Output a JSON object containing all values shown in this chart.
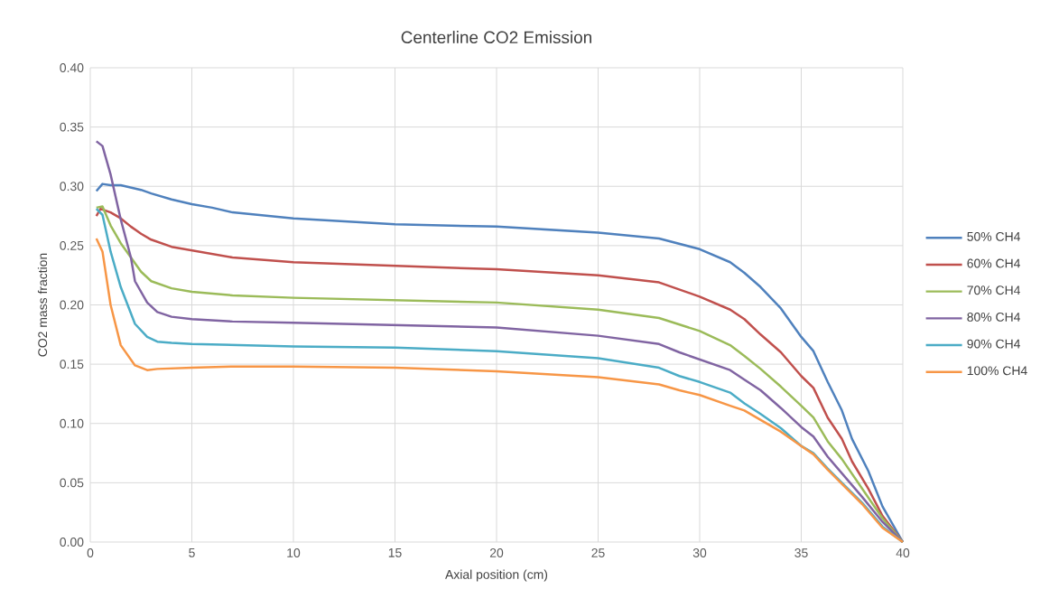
{
  "chart_data": {
    "type": "line",
    "title": "Centerline CO2 Emission",
    "xlabel": "Axial position (cm)",
    "ylabel": "CO2 mass fraction",
    "xlim": [
      0,
      40
    ],
    "xticks": [
      0,
      5,
      10,
      15,
      20,
      25,
      30,
      35,
      40
    ],
    "ylim": [
      0,
      0.4
    ],
    "yticks": [
      {
        "value": 0,
        "label": "0.00"
      },
      {
        "value": 0.05,
        "label": "0.05"
      },
      {
        "value": 0.1,
        "label": "0.10"
      },
      {
        "value": 0.15,
        "label": "0.15"
      },
      {
        "value": 0.2,
        "label": "0.20"
      },
      {
        "value": 0.25,
        "label": "0.25"
      },
      {
        "value": 0.3,
        "label": "0.30"
      },
      {
        "value": 0.35,
        "label": "0.35"
      },
      {
        "value": 0.4,
        "label": "0.40"
      }
    ],
    "grid": true,
    "legend": "right",
    "marker": "none",
    "line_style": "solid",
    "series": [
      {
        "name": "50% CH4",
        "color": "#4f81bd",
        "x": [
          0.3,
          0.6,
          1,
          1.5,
          2,
          2.5,
          3,
          4,
          5,
          6,
          7,
          10,
          15,
          20,
          25,
          28,
          30,
          31.5,
          32.2,
          33,
          34,
          35,
          35.6,
          36.3,
          37,
          37.5,
          38.3,
          39,
          39.5,
          40
        ],
        "values": [
          0.296,
          0.302,
          0.301,
          0.301,
          0.299,
          0.297,
          0.294,
          0.289,
          0.285,
          0.282,
          0.278,
          0.273,
          0.268,
          0.266,
          0.261,
          0.256,
          0.247,
          0.236,
          0.227,
          0.215,
          0.197,
          0.173,
          0.161,
          0.135,
          0.111,
          0.087,
          0.06,
          0.03,
          0.015,
          0
        ]
      },
      {
        "name": "60% CH4",
        "color": "#c0504d",
        "x": [
          0.3,
          0.5,
          1,
          1.5,
          2,
          2.5,
          3,
          4,
          5,
          7,
          10,
          15,
          20,
          25,
          28,
          29,
          30,
          31.5,
          32.2,
          33,
          34,
          35,
          35.6,
          36.3,
          37,
          37.5,
          38.3,
          39,
          40
        ],
        "values": [
          0.275,
          0.281,
          0.278,
          0.273,
          0.266,
          0.26,
          0.255,
          0.249,
          0.246,
          0.24,
          0.236,
          0.233,
          0.23,
          0.225,
          0.219,
          0.213,
          0.207,
          0.196,
          0.188,
          0.175,
          0.16,
          0.14,
          0.13,
          0.105,
          0.087,
          0.068,
          0.045,
          0.022,
          0
        ]
      },
      {
        "name": "70% CH4",
        "color": "#9bbb59",
        "x": [
          0.3,
          0.6,
          1,
          1.5,
          2,
          2.5,
          3,
          4,
          5,
          7,
          10,
          15,
          20,
          25,
          28,
          30,
          31.5,
          32.2,
          33,
          34,
          35,
          35.6,
          36.3,
          37,
          38,
          39,
          40
        ],
        "values": [
          0.282,
          0.283,
          0.267,
          0.252,
          0.24,
          0.228,
          0.22,
          0.214,
          0.211,
          0.208,
          0.206,
          0.204,
          0.202,
          0.196,
          0.189,
          0.178,
          0.166,
          0.157,
          0.146,
          0.131,
          0.115,
          0.105,
          0.085,
          0.07,
          0.045,
          0.02,
          0
        ]
      },
      {
        "name": "80% CH4",
        "color": "#8064a2",
        "x": [
          0.3,
          0.6,
          1,
          1.5,
          2,
          2.2,
          2.8,
          3.3,
          4,
          5,
          7,
          10,
          15,
          20,
          25,
          28,
          29,
          30,
          31.5,
          32.2,
          33,
          34,
          35,
          35.6,
          36.3,
          37,
          38,
          39,
          40
        ],
        "values": [
          0.338,
          0.334,
          0.31,
          0.272,
          0.24,
          0.22,
          0.202,
          0.194,
          0.19,
          0.188,
          0.186,
          0.185,
          0.183,
          0.181,
          0.174,
          0.167,
          0.16,
          0.154,
          0.145,
          0.137,
          0.128,
          0.113,
          0.097,
          0.089,
          0.072,
          0.058,
          0.038,
          0.017,
          0
        ]
      },
      {
        "name": "90% CH4",
        "color": "#4bacc6",
        "x": [
          0.3,
          0.6,
          1,
          1.5,
          2.2,
          2.8,
          3.3,
          4,
          5,
          10,
          15,
          20,
          25,
          28,
          29,
          30,
          31.5,
          32.2,
          33,
          34,
          35,
          35.6,
          36.3,
          37,
          38,
          39,
          40
        ],
        "values": [
          0.281,
          0.276,
          0.245,
          0.215,
          0.184,
          0.173,
          0.169,
          0.168,
          0.167,
          0.165,
          0.164,
          0.161,
          0.155,
          0.147,
          0.14,
          0.135,
          0.126,
          0.117,
          0.108,
          0.096,
          0.081,
          0.075,
          0.062,
          0.05,
          0.033,
          0.013,
          0
        ]
      },
      {
        "name": "100% CH4",
        "color": "#f79646",
        "x": [
          0.3,
          0.6,
          1,
          1.5,
          2.2,
          2.8,
          3.3,
          5,
          7,
          10,
          15,
          20,
          25,
          28,
          29,
          30,
          31.5,
          32.2,
          33,
          34,
          35,
          35.6,
          36.3,
          37,
          38,
          39,
          40
        ],
        "values": [
          0.256,
          0.245,
          0.2,
          0.166,
          0.149,
          0.145,
          0.146,
          0.147,
          0.148,
          0.148,
          0.147,
          0.144,
          0.139,
          0.133,
          0.128,
          0.124,
          0.115,
          0.111,
          0.103,
          0.093,
          0.081,
          0.074,
          0.061,
          0.049,
          0.032,
          0.012,
          0
        ]
      }
    ]
  }
}
